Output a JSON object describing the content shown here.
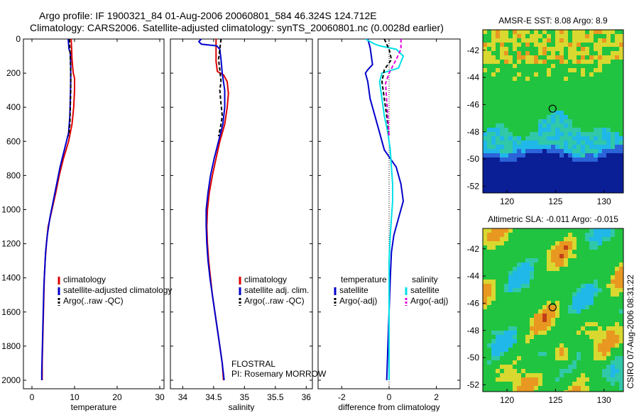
{
  "header": {
    "line1": "Argo profile: IF 1900321_84 01-Aug-2006 20060801_584 46.324S 124.712E",
    "line2": "Climatology: CARS2006. Satellite-adjusted climatology: synTS_20060801.nc (0.0028d earlier)"
  },
  "side_label": "CSIRO 07-Aug-2006 08:31:22",
  "float_info": {
    "name": "FLOSTRAL",
    "pi": "PI: Rosemary MORROW"
  },
  "colors": {
    "climatology": "#dd0000",
    "satellite": "#0000cc",
    "argo": "#000000",
    "cyan": "#00e0e8",
    "magenta": "#e000e0",
    "map_deep_blue": "#0a1e96",
    "map_blue": "#2b63d8",
    "map_cyan": "#20b8e8",
    "map_teal": "#30c8a8",
    "map_green": "#20c440",
    "map_yellow": "#d8d830",
    "map_orange": "#e89820"
  },
  "chart_data": [
    {
      "type": "line",
      "xlabel": "temperature",
      "ylabel": "",
      "xlim": [
        -2,
        31
      ],
      "ylim": [
        2050,
        0
      ],
      "xticks": [
        0,
        10,
        20,
        30
      ],
      "yticks": [
        0,
        200,
        400,
        600,
        800,
        1000,
        1200,
        1400,
        1600,
        1800,
        2000
      ],
      "legend": [
        {
          "label": "climatology",
          "color": "#dd0000",
          "dash": false
        },
        {
          "label": "satellite-adjusted climatology",
          "color": "#0000cc",
          "dash": false
        },
        {
          "label": "Argo(..raw -QC)",
          "color": "#000000",
          "dash": true
        }
      ],
      "series": [
        {
          "name": "climatology",
          "color": "#dd0000",
          "dash": false,
          "points": [
            [
              9.2,
              0
            ],
            [
              9.3,
              50
            ],
            [
              9.4,
              120
            ],
            [
              9.7,
              200
            ],
            [
              10.0,
              230
            ],
            [
              10.0,
              300
            ],
            [
              9.8,
              400
            ],
            [
              9.4,
              500
            ],
            [
              8.6,
              600
            ],
            [
              7.4,
              700
            ],
            [
              6.4,
              800
            ],
            [
              5.6,
              900
            ],
            [
              4.7,
              1000
            ],
            [
              3.8,
              1100
            ],
            [
              3.4,
              1200
            ],
            [
              3.1,
              1300
            ],
            [
              2.9,
              1400
            ],
            [
              2.8,
              1500
            ],
            [
              2.7,
              1600
            ],
            [
              2.6,
              1700
            ],
            [
              2.5,
              1800
            ],
            [
              2.4,
              1900
            ],
            [
              2.4,
              2000
            ]
          ]
        },
        {
          "name": "satellite-adjusted climatology",
          "color": "#0000cc",
          "dash": false,
          "points": [
            [
              8.5,
              0
            ],
            [
              8.6,
              30
            ],
            [
              8.7,
              60
            ],
            [
              9.0,
              80
            ],
            [
              9.1,
              150
            ],
            [
              9.1,
              250
            ],
            [
              9.0,
              350
            ],
            [
              8.9,
              450
            ],
            [
              8.6,
              550
            ],
            [
              7.6,
              650
            ],
            [
              6.6,
              750
            ],
            [
              5.8,
              850
            ],
            [
              5.0,
              950
            ],
            [
              4.2,
              1050
            ],
            [
              3.6,
              1150
            ],
            [
              3.2,
              1250
            ],
            [
              3.0,
              1350
            ],
            [
              2.8,
              1450
            ],
            [
              2.7,
              1550
            ],
            [
              2.6,
              1650
            ],
            [
              2.5,
              1750
            ],
            [
              2.4,
              1850
            ],
            [
              2.3,
              1950
            ],
            [
              2.3,
              2000
            ]
          ]
        },
        {
          "name": "Argo(..raw -QC)",
          "color": "#000000",
          "dash": true,
          "points": [
            [
              8.8,
              0
            ],
            [
              8.9,
              60
            ],
            [
              9.0,
              100
            ],
            [
              9.1,
              200
            ],
            [
              9.1,
              300
            ],
            [
              9.0,
              400
            ],
            [
              8.9,
              500
            ],
            [
              8.6,
              570
            ]
          ]
        }
      ]
    },
    {
      "type": "line",
      "xlabel": "salinity",
      "ylabel": "",
      "xlim": [
        33.8,
        36.1
      ],
      "ylim": [
        2050,
        0
      ],
      "xticks": [
        34,
        34.5,
        35,
        35.5,
        36
      ],
      "yticks": [
        0,
        200,
        400,
        600,
        800,
        1000,
        1200,
        1400,
        1600,
        1800,
        2000
      ],
      "legend": [
        {
          "label": "climatology",
          "color": "#dd0000",
          "dash": false
        },
        {
          "label": "satellite adj. clim.",
          "color": "#0000cc",
          "dash": false
        },
        {
          "label": "Argo(..raw -QC)",
          "color": "#000000",
          "dash": true
        }
      ],
      "series": [
        {
          "name": "climatology",
          "color": "#dd0000",
          "dash": false,
          "points": [
            [
              34.54,
              0
            ],
            [
              34.54,
              60
            ],
            [
              34.54,
              130
            ],
            [
              34.56,
              190
            ],
            [
              34.66,
              210
            ],
            [
              34.72,
              250
            ],
            [
              34.74,
              320
            ],
            [
              34.72,
              400
            ],
            [
              34.68,
              500
            ],
            [
              34.6,
              600
            ],
            [
              34.54,
              700
            ],
            [
              34.48,
              800
            ],
            [
              34.43,
              900
            ],
            [
              34.4,
              1000
            ],
            [
              34.39,
              1100
            ],
            [
              34.4,
              1200
            ],
            [
              34.42,
              1300
            ],
            [
              34.45,
              1400
            ],
            [
              34.48,
              1500
            ],
            [
              34.52,
              1600
            ],
            [
              34.56,
              1700
            ],
            [
              34.6,
              1800
            ],
            [
              34.64,
              1900
            ],
            [
              34.66,
              2000
            ]
          ]
        },
        {
          "name": "satellite adj. clim.",
          "color": "#0000cc",
          "dash": false,
          "points": [
            [
              34.3,
              0
            ],
            [
              34.26,
              15
            ],
            [
              34.3,
              30
            ],
            [
              34.55,
              40
            ],
            [
              34.6,
              60
            ],
            [
              34.62,
              120
            ],
            [
              34.64,
              200
            ],
            [
              34.68,
              300
            ],
            [
              34.68,
              400
            ],
            [
              34.65,
              500
            ],
            [
              34.58,
              600
            ],
            [
              34.51,
              700
            ],
            [
              34.45,
              800
            ],
            [
              34.41,
              900
            ],
            [
              34.38,
              1000
            ],
            [
              34.38,
              1100
            ],
            [
              34.39,
              1200
            ],
            [
              34.41,
              1300
            ],
            [
              34.44,
              1400
            ],
            [
              34.48,
              1500
            ],
            [
              34.52,
              1600
            ],
            [
              34.56,
              1700
            ],
            [
              34.6,
              1800
            ],
            [
              34.64,
              1900
            ],
            [
              34.67,
              2000
            ]
          ]
        },
        {
          "name": "Argo(..raw -QC)",
          "color": "#000000",
          "dash": true,
          "points": [
            [
              34.62,
              0
            ],
            [
              34.6,
              60
            ],
            [
              34.58,
              120
            ],
            [
              34.6,
              180
            ],
            [
              34.62,
              250
            ],
            [
              34.6,
              300
            ],
            [
              34.62,
              380
            ],
            [
              34.64,
              450
            ],
            [
              34.62,
              500
            ],
            [
              34.58,
              570
            ]
          ]
        }
      ]
    },
    {
      "type": "line",
      "xlabel": "difference from climatology",
      "ylabel": "",
      "xlim": [
        -3,
        3
      ],
      "ylim": [
        2050,
        0
      ],
      "xticks": [
        -2,
        0,
        2
      ],
      "yticks": [
        0,
        200,
        400,
        600,
        800,
        1000,
        1200,
        1400,
        1600,
        1800,
        2000
      ],
      "legend": [
        {
          "label": "temperature",
          "color": "",
          "dash": false
        },
        {
          "label": "salinity",
          "color": "",
          "dash": false
        },
        {
          "label": "satellite",
          "color": "#0000cc",
          "dash": false
        },
        {
          "label": "satellite",
          "color": "#00e0e8",
          "dash": false
        },
        {
          "label": "Argo(-adj)",
          "color": "#000000",
          "dash": true
        },
        {
          "label": "Argo(-adj)",
          "color": "#e000e0",
          "dash": true
        }
      ],
      "series": [
        {
          "name": "temperature satellite",
          "color": "#0000cc",
          "dash": false,
          "points": [
            [
              -0.9,
              0
            ],
            [
              -0.8,
              50
            ],
            [
              -0.7,
              150
            ],
            [
              -0.9,
              180
            ],
            [
              -1.0,
              200
            ],
            [
              -0.9,
              250
            ],
            [
              -0.8,
              350
            ],
            [
              -0.6,
              450
            ],
            [
              -0.4,
              550
            ],
            [
              -0.2,
              650
            ],
            [
              0.3,
              750
            ],
            [
              0.5,
              850
            ],
            [
              0.6,
              950
            ],
            [
              0.4,
              1050
            ],
            [
              0.2,
              1150
            ],
            [
              0.1,
              1250
            ],
            [
              0.05,
              1400
            ],
            [
              0.0,
              1600
            ],
            [
              -0.05,
              1800
            ],
            [
              -0.1,
              2000
            ]
          ]
        },
        {
          "name": "salinity satellite",
          "color": "#00e0e8",
          "dash": false,
          "points": [
            [
              -1.0,
              0
            ],
            [
              -0.6,
              30
            ],
            [
              -0.4,
              40
            ],
            [
              0.3,
              60
            ],
            [
              0.6,
              100
            ],
            [
              0.4,
              170
            ],
            [
              -0.3,
              200
            ],
            [
              -0.4,
              250
            ],
            [
              -0.3,
              350
            ],
            [
              -0.2,
              450
            ],
            [
              -0.05,
              550
            ],
            [
              0.05,
              650
            ],
            [
              0.1,
              750
            ],
            [
              0.15,
              850
            ],
            [
              0.15,
              950
            ],
            [
              0.1,
              1050
            ],
            [
              0.05,
              1150
            ],
            [
              0.0,
              1300
            ],
            [
              0.0,
              1500
            ],
            [
              0.0,
              1700
            ],
            [
              0.0,
              1900
            ],
            [
              0.0,
              2000
            ]
          ]
        },
        {
          "name": "temperature Argo(-adj)",
          "color": "#000000",
          "dash": true,
          "points": [
            [
              -0.2,
              0
            ],
            [
              0.0,
              60
            ],
            [
              0.1,
              120
            ],
            [
              -0.2,
              180
            ],
            [
              -0.3,
              250
            ],
            [
              -0.2,
              350
            ],
            [
              -0.1,
              450
            ],
            [
              0.0,
              570
            ]
          ]
        },
        {
          "name": "salinity Argo(-adj)",
          "color": "#e000e0",
          "dash": true,
          "points": [
            [
              0.5,
              0
            ],
            [
              0.5,
              60
            ],
            [
              0.3,
              120
            ],
            [
              0.0,
              200
            ],
            [
              -0.15,
              260
            ],
            [
              -0.1,
              360
            ],
            [
              -0.05,
              460
            ],
            [
              0.0,
              570
            ]
          ]
        }
      ]
    },
    {
      "type": "heatmap",
      "title": "AMSR-E SST: 8.08 Argo: 8.9",
      "xlim": [
        117.5,
        132
      ],
      "ylim": [
        -52.5,
        -40.5
      ],
      "xticks": [
        120,
        125,
        130
      ],
      "yticks": [
        -42,
        -44,
        -46,
        -48,
        -50,
        -52
      ],
      "marker": {
        "lon": 124.7,
        "lat": -46.3
      }
    },
    {
      "type": "heatmap",
      "title": "Altimetric SLA: -0.011 Argo: -0.015",
      "xlim": [
        117.5,
        132
      ],
      "ylim": [
        -52.5,
        -40.5
      ],
      "xticks": [
        120,
        125,
        130
      ],
      "yticks": [
        -42,
        -44,
        -46,
        -48,
        -50,
        -52
      ],
      "marker": {
        "lon": 124.7,
        "lat": -46.3
      }
    }
  ]
}
